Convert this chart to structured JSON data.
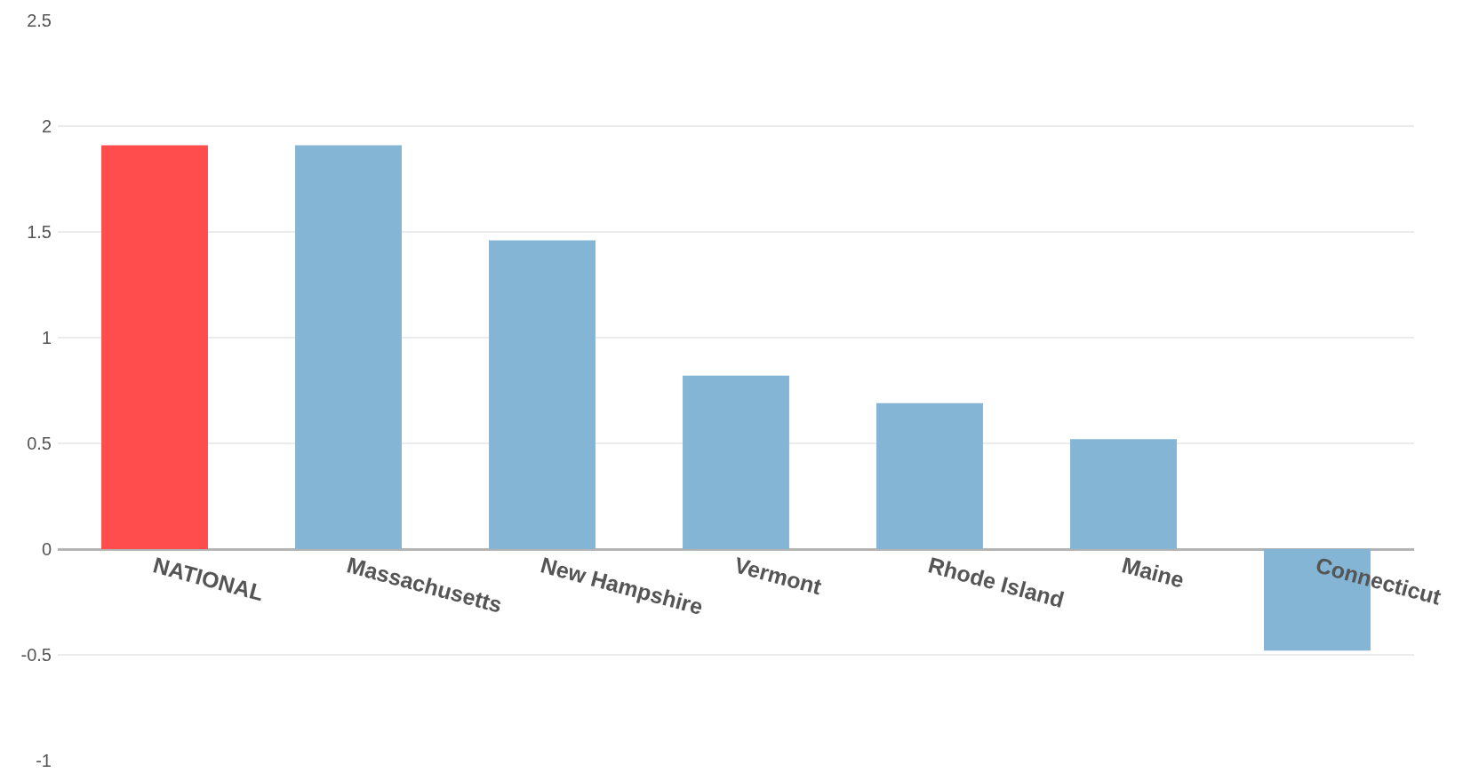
{
  "chart_data": {
    "type": "bar",
    "categories": [
      "NATIONAL",
      "Massachusetts",
      "New Hampshire",
      "Vermont",
      "Rhode Island",
      "Maine",
      "Connecticut"
    ],
    "values": [
      1.91,
      1.91,
      1.46,
      0.82,
      0.69,
      0.52,
      -0.48
    ],
    "colors": [
      "#ff4c4c",
      "#84b5d4",
      "#84b5d4",
      "#84b5d4",
      "#84b5d4",
      "#84b5d4",
      "#84b5d4"
    ],
    "ylim": [
      -1,
      2.5
    ],
    "yticks": [
      -1,
      -0.5,
      0,
      0.5,
      1,
      1.5,
      2,
      2.5
    ],
    "grid": "y"
  }
}
